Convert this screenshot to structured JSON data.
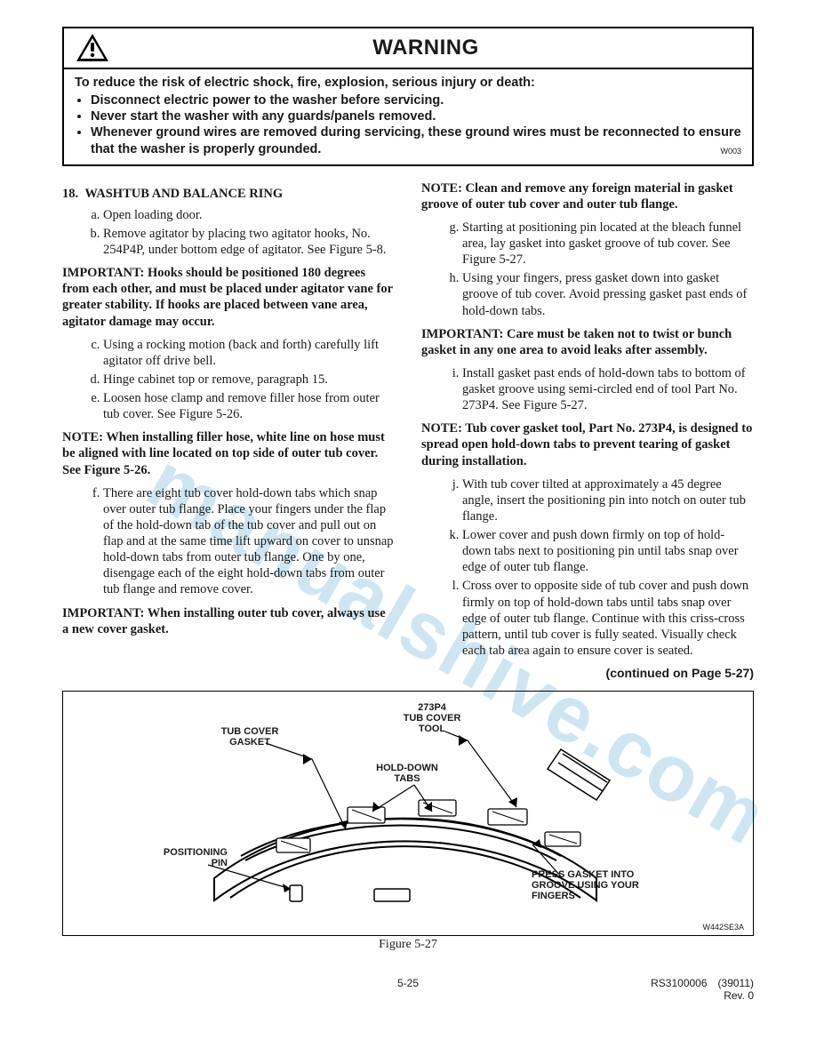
{
  "watermark_text": "manualshive.com",
  "warning": {
    "title": "WARNING",
    "intro": "To reduce the risk of electric shock, fire, explosion, serious injury or death:",
    "bullets": [
      "Disconnect electric power to the washer before servicing.",
      "Never start the washer with any guards/panels removed.",
      "Whenever ground wires are removed during servicing, these ground wires must be reconnected to ensure that the washer is properly grounded."
    ],
    "code": "W003"
  },
  "left": {
    "heading": "18. WASHTUB AND BALANCE RING",
    "list_ab": {
      "a": "Open loading door.",
      "b": "Remove agitator by placing two agitator hooks, No. 254P4P, under bottom edge of agitator. See Figure 5-8."
    },
    "important1": "IMPORTANT: Hooks should be positioned 180 degrees from each other, and must be placed under agitator vane for greater stability. If hooks are placed between vane area, agitator damage may occur.",
    "list_cde": {
      "c": "Using a rocking motion (back and forth) carefully lift agitator off drive bell.",
      "d": "Hinge cabinet top or remove, paragraph 15.",
      "e": "Loosen hose clamp and remove filler hose from outer tub cover. See Figure 5-26."
    },
    "note1": "NOTE: When installing filler hose, white line on hose must be aligned with line located on top side of outer tub cover. See Figure 5-26.",
    "list_f": {
      "f": "There are eight tub cover hold-down tabs which snap over outer tub flange. Place your fingers under the flap of the hold-down tab of the tub cover and pull out on flap and at the same time lift upward on cover to unsnap hold-down tabs from outer tub flange. One by one, disengage each of the eight hold-down tabs from outer tub flange and remove cover."
    },
    "important2": "IMPORTANT: When installing outer tub cover, always use a new cover gasket."
  },
  "right": {
    "note_top": "NOTE: Clean and remove any foreign material in gasket groove of outer tub cover and outer tub flange.",
    "list_gh": {
      "g": "Starting at positioning pin located at the bleach funnel area, lay gasket into gasket groove of tub cover. See Figure 5-27.",
      "h": "Using your fingers, press gasket down into gasket groove of tub cover. Avoid pressing gasket past ends of hold-down tabs."
    },
    "important1": "IMPORTANT: Care must be taken not to twist or bunch gasket in any one area to avoid leaks after assembly.",
    "list_i": {
      "i": "Install gasket past ends of hold-down tabs to bottom of gasket groove using semi-circled end of tool Part No. 273P4. See Figure 5-27."
    },
    "note2": "NOTE: Tub cover gasket tool, Part No. 273P4, is designed to spread open hold-down tabs to prevent tearing of gasket during installation.",
    "list_jkl": {
      "j": "With tub cover tilted at approximately a 45 degree angle, insert the positioning pin into notch on outer tub flange.",
      "k": "Lower cover and push down firmly on top of hold- down tabs next to positioning pin until tabs snap over edge of outer tub flange.",
      "l": "Cross over to opposite side of tub cover and push down firmly on top of hold-down tabs until tabs snap over edge of outer tub flange. Continue with this criss-cross pattern, until tub cover is fully seated. Visually check each tab area again to ensure cover is seated."
    },
    "continued": "(continued on Page 5-27)"
  },
  "figure": {
    "labels": {
      "gasket": "TUB COVER\nGASKET",
      "tool": "273P4\nTUB COVER\nTOOL",
      "tabs": "HOLD-DOWN\nTABS",
      "pin": "POSITIONING\nPIN",
      "press": "PRESS GASKET INTO\nGROOVE USING YOUR\nFINGERS"
    },
    "code": "W442SE3A",
    "caption": "Figure 5-27"
  },
  "footer": {
    "page": "5-25",
    "doc": "RS3100006 (39011)",
    "rev": "Rev. 0"
  },
  "colors": {
    "text": "#1a1a1a",
    "watermark": "#cfe6f2",
    "border": "#000000"
  }
}
